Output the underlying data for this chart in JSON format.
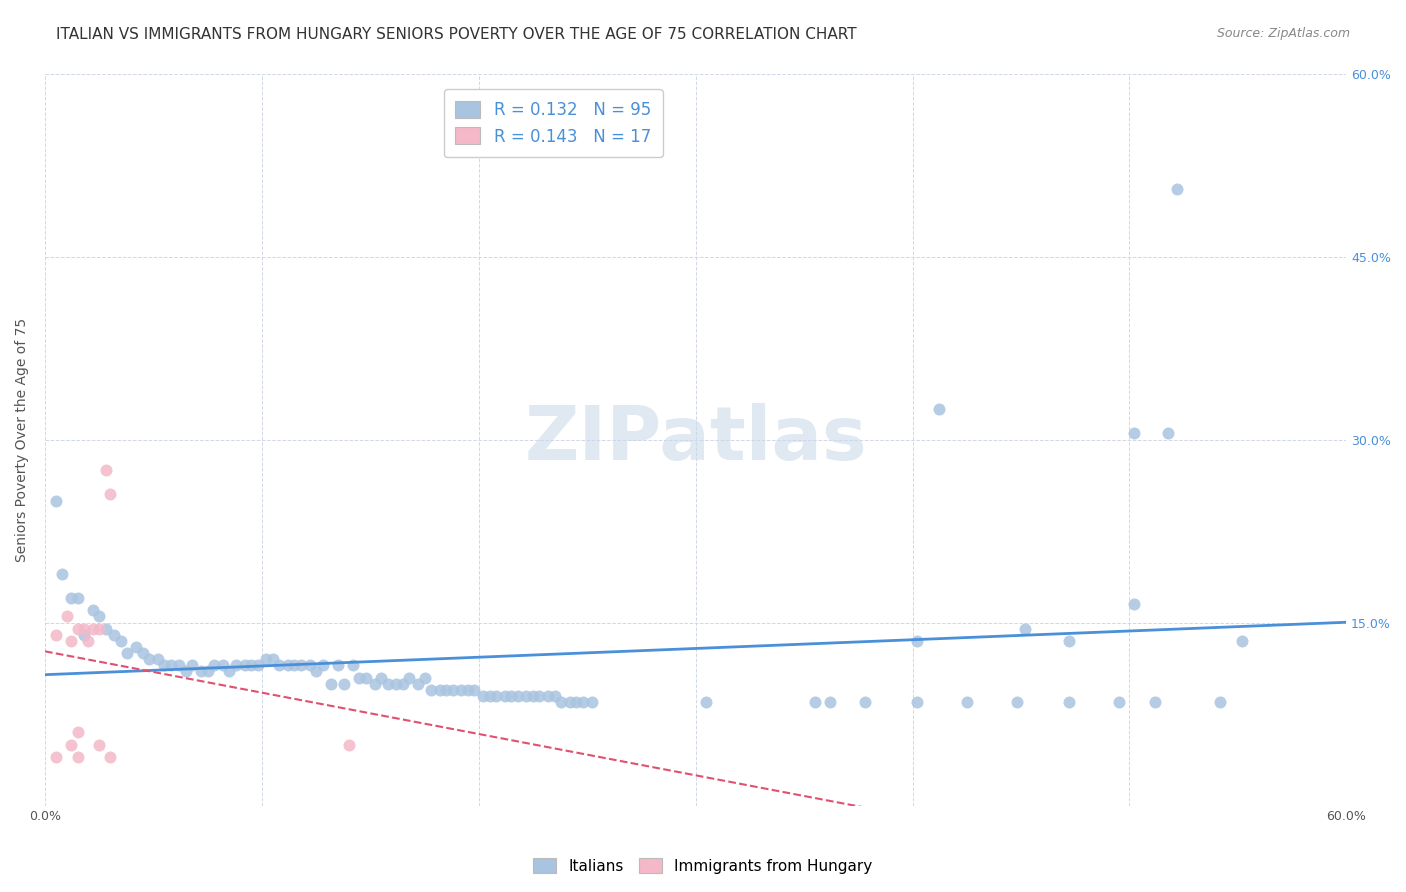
{
  "title": "ITALIAN VS IMMIGRANTS FROM HUNGARY SENIORS POVERTY OVER THE AGE OF 75 CORRELATION CHART",
  "source": "Source: ZipAtlas.com",
  "ylabel": "Seniors Poverty Over the Age of 75",
  "xlim": [
    0.0,
    0.6
  ],
  "ylim": [
    0.0,
    0.6
  ],
  "italians_R": 0.132,
  "italians_N": 95,
  "hungary_R": 0.143,
  "hungary_N": 17,
  "italians_color": "#a8c4e0",
  "hungary_color": "#f4b8c8",
  "trendline_italian_color": "#4a90d9",
  "trendline_hungary_color": "#e05070",
  "background_color": "#ffffff",
  "grid_color": "#d0d8e8",
  "watermark_text": "ZIPatlas",
  "title_fontsize": 11,
  "label_fontsize": 10,
  "tick_fontsize": 9,
  "legend_R_N_color": "#4a90d9",
  "right_tick_color": "#4a90d9",
  "italians_x": [
    0.005,
    0.008,
    0.012,
    0.015,
    0.018,
    0.022,
    0.025,
    0.028,
    0.032,
    0.035,
    0.038,
    0.042,
    0.045,
    0.048,
    0.052,
    0.055,
    0.058,
    0.062,
    0.065,
    0.068,
    0.072,
    0.075,
    0.078,
    0.082,
    0.085,
    0.088,
    0.092,
    0.095,
    0.098,
    0.102,
    0.105,
    0.108,
    0.112,
    0.115,
    0.118,
    0.122,
    0.125,
    0.128,
    0.132,
    0.135,
    0.138,
    0.142,
    0.145,
    0.148,
    0.152,
    0.155,
    0.158,
    0.162,
    0.165,
    0.168,
    0.172,
    0.175,
    0.178,
    0.182,
    0.185,
    0.188,
    0.192,
    0.195,
    0.198,
    0.202,
    0.205,
    0.208,
    0.212,
    0.215,
    0.218,
    0.222,
    0.225,
    0.228,
    0.232,
    0.235,
    0.238,
    0.242,
    0.245,
    0.248,
    0.252,
    0.305,
    0.355,
    0.378,
    0.402,
    0.425,
    0.448,
    0.472,
    0.495,
    0.518,
    0.542,
    0.402,
    0.452,
    0.502,
    0.502,
    0.552,
    0.412,
    0.362,
    0.512,
    0.522,
    0.472
  ],
  "italians_y": [
    0.25,
    0.19,
    0.17,
    0.17,
    0.14,
    0.16,
    0.155,
    0.145,
    0.14,
    0.135,
    0.125,
    0.13,
    0.125,
    0.12,
    0.12,
    0.115,
    0.115,
    0.115,
    0.11,
    0.115,
    0.11,
    0.11,
    0.115,
    0.115,
    0.11,
    0.115,
    0.115,
    0.115,
    0.115,
    0.12,
    0.12,
    0.115,
    0.115,
    0.115,
    0.115,
    0.115,
    0.11,
    0.115,
    0.1,
    0.115,
    0.1,
    0.115,
    0.105,
    0.105,
    0.1,
    0.105,
    0.1,
    0.1,
    0.1,
    0.105,
    0.1,
    0.105,
    0.095,
    0.095,
    0.095,
    0.095,
    0.095,
    0.095,
    0.095,
    0.09,
    0.09,
    0.09,
    0.09,
    0.09,
    0.09,
    0.09,
    0.09,
    0.09,
    0.09,
    0.09,
    0.085,
    0.085,
    0.085,
    0.085,
    0.085,
    0.085,
    0.085,
    0.085,
    0.085,
    0.085,
    0.085,
    0.135,
    0.085,
    0.305,
    0.085,
    0.135,
    0.145,
    0.305,
    0.165,
    0.135,
    0.325,
    0.085,
    0.085,
    0.505,
    0.085
  ],
  "hungary_x": [
    0.005,
    0.01,
    0.012,
    0.015,
    0.018,
    0.02,
    0.022,
    0.025,
    0.028,
    0.03,
    0.012,
    0.015,
    0.015,
    0.025,
    0.03,
    0.14,
    0.005
  ],
  "hungary_y": [
    0.14,
    0.155,
    0.135,
    0.145,
    0.145,
    0.135,
    0.145,
    0.145,
    0.275,
    0.255,
    0.05,
    0.06,
    0.04,
    0.05,
    0.04,
    0.05,
    0.04
  ]
}
